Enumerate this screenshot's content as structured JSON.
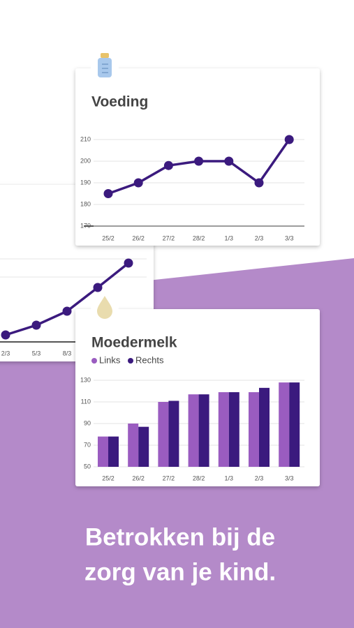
{
  "chart_data": [
    {
      "type": "line",
      "title": "Voeding",
      "categories": [
        "25/2",
        "26/2",
        "27/2",
        "28/2",
        "1/3",
        "2/3",
        "3/3"
      ],
      "series": [
        {
          "color": "#3b1a7e",
          "values": [
            185,
            190,
            198,
            200,
            200,
            190,
            210
          ]
        }
      ],
      "ylim": [
        170,
        210
      ],
      "yticks": [
        170,
        180,
        190,
        200,
        210
      ],
      "grid": true
    },
    {
      "type": "bar",
      "title": "Moedermelk",
      "categories": [
        "25/2",
        "26/2",
        "27/2",
        "28/2",
        "1/3",
        "2/3",
        "3/3"
      ],
      "series": [
        {
          "name": "Links",
          "color": "#9a5cc0",
          "values": [
            78,
            90,
            110,
            117,
            119,
            119,
            128
          ]
        },
        {
          "name": "Rechts",
          "color": "#3b1a7e",
          "values": [
            78,
            87,
            111,
            117,
            119,
            123,
            128
          ]
        }
      ],
      "ylim": [
        50,
        130
      ],
      "yticks": [
        50,
        70,
        90,
        110,
        130
      ],
      "grid": true,
      "legend": "top-left"
    },
    {
      "type": "line",
      "categories": [
        "2/3",
        "5/3",
        "8/3",
        null,
        null
      ],
      "series": [
        {
          "color": "#3b1a7e",
          "values": [
            10,
            24,
            44,
            78,
            113
          ]
        }
      ],
      "ylim": [
        0,
        120
      ]
    }
  ],
  "tagline": [
    "Betrokken bij de",
    "zorg van je kind."
  ]
}
